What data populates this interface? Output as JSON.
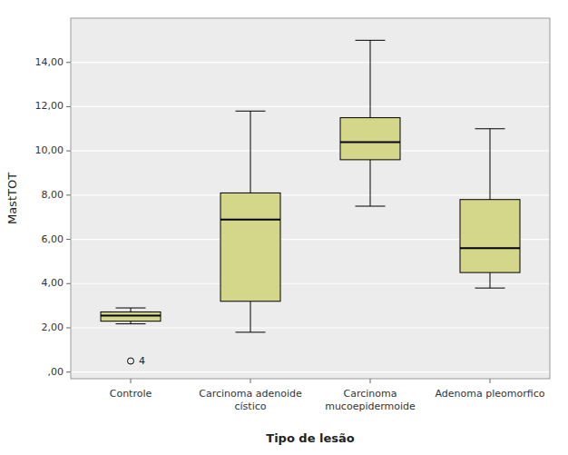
{
  "chart_data": {
    "type": "box",
    "categories": [
      "Controle",
      "Carcinoma adenoide\ncístico",
      "Carcinoma\nmucoepidermoide",
      "Adenoma pleomorfico"
    ],
    "boxes": [
      {
        "q1": 2.3,
        "median": 2.55,
        "q3": 2.72,
        "whislo": 2.18,
        "whishi": 2.9,
        "fliers": [
          0.5
        ]
      },
      {
        "q1": 3.2,
        "median": 6.9,
        "q3": 8.1,
        "whislo": 1.8,
        "whishi": 11.8,
        "fliers": []
      },
      {
        "q1": 9.6,
        "median": 10.4,
        "q3": 11.5,
        "whislo": 7.5,
        "whishi": 15.0,
        "fliers": []
      },
      {
        "q1": 4.5,
        "median": 5.6,
        "q3": 7.8,
        "whislo": 3.8,
        "whishi": 11.0,
        "fliers": []
      }
    ],
    "annotations": [
      {
        "text": "4",
        "category": 0,
        "y": 0.5
      }
    ],
    "y_label": "MastTOT",
    "x_label": "Tipo de lesão",
    "ylim": [
      -0.3,
      16.0
    ],
    "yticks": [
      {
        "value": 0.0,
        "label": ",00"
      },
      {
        "value": 2.0,
        "label": "2,00"
      },
      {
        "value": 4.0,
        "label": "4,00"
      },
      {
        "value": 6.0,
        "label": "6,00"
      },
      {
        "value": 8.0,
        "label": "8,00"
      },
      {
        "value": 10.0,
        "label": "10,00"
      },
      {
        "value": 12.0,
        "label": "12,00"
      },
      {
        "value": 14.0,
        "label": "14,00"
      }
    ],
    "color": "#d4d68a",
    "grid": true
  }
}
